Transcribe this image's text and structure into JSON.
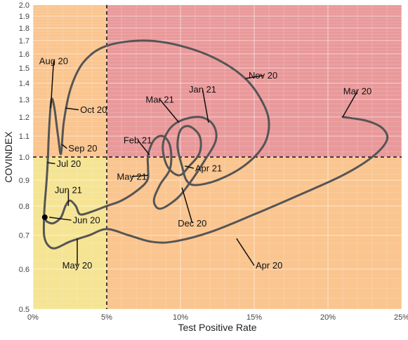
{
  "chart_data": {
    "type": "line",
    "xlabel": "Test Positive Rate",
    "ylabel": "COVINDEX",
    "xlim": [
      0,
      25
    ],
    "ylim": [
      0.5,
      2.0
    ],
    "y_scale": "log",
    "x_ticks": [
      0,
      5,
      10,
      15,
      20,
      25
    ],
    "x_tick_labels": [
      "0%",
      "5%",
      "10%",
      "15%",
      "20%",
      "25%"
    ],
    "y_ticks": [
      0.5,
      0.6,
      0.7,
      0.8,
      0.9,
      1.0,
      1.1,
      1.2,
      1.3,
      1.4,
      1.5,
      1.6,
      1.7,
      1.8,
      1.9,
      2.0
    ],
    "y_tick_labels": [
      "0.5",
      "0.6",
      "0.7",
      "0.8",
      "0.9",
      "1.0",
      "1.1",
      "1.2",
      "1.3",
      "1.4",
      "1.5",
      "1.6",
      "1.7",
      "1.8",
      "1.9",
      "2.0"
    ],
    "thresholds": {
      "x": 5,
      "y": 1.0
    },
    "zones": {
      "low_low": "#f5e493",
      "low_high": "#fac58f",
      "high_low": "#fac58f",
      "high_high": "#e9999a"
    },
    "line_color": "#555555",
    "series": [
      {
        "points": [
          [
            21.0,
            1.2
          ],
          [
            22.6,
            1.18
          ],
          [
            23.7,
            1.14
          ],
          [
            24.0,
            1.08
          ],
          [
            23.0,
            1.0
          ],
          [
            21.0,
            0.92
          ],
          [
            18.0,
            0.84
          ],
          [
            15.0,
            0.77
          ],
          [
            12.0,
            0.71
          ],
          [
            9.5,
            0.68
          ],
          [
            8.0,
            0.68
          ],
          [
            6.5,
            0.7
          ],
          [
            5.0,
            0.72
          ],
          [
            3.8,
            0.7
          ],
          [
            2.5,
            0.68
          ],
          [
            1.5,
            0.66
          ],
          [
            1.0,
            0.67
          ],
          [
            0.75,
            0.7
          ],
          [
            0.75,
            0.76
          ],
          [
            0.8,
            0.81
          ],
          [
            0.9,
            0.88
          ],
          [
            1.0,
            0.98
          ],
          [
            1.1,
            1.15
          ],
          [
            1.25,
            1.3
          ],
          [
            1.45,
            1.25
          ],
          [
            1.7,
            1.1
          ],
          [
            1.9,
            1.015
          ],
          [
            2.1,
            1.18
          ],
          [
            2.6,
            1.38
          ],
          [
            3.5,
            1.55
          ],
          [
            5.0,
            1.66
          ],
          [
            7.5,
            1.7
          ],
          [
            10.0,
            1.66
          ],
          [
            12.5,
            1.56
          ],
          [
            14.5,
            1.42
          ],
          [
            15.7,
            1.26
          ],
          [
            16.0,
            1.15
          ],
          [
            15.6,
            1.05
          ],
          [
            14.3,
            0.96
          ],
          [
            12.5,
            0.9
          ],
          [
            11.0,
            0.88
          ],
          [
            10.4,
            0.9
          ],
          [
            10.1,
            0.96
          ],
          [
            9.8,
            1.05
          ],
          [
            10.0,
            1.13
          ],
          [
            10.6,
            1.15
          ],
          [
            11.3,
            1.1
          ],
          [
            11.3,
            1.02
          ],
          [
            10.6,
            0.96
          ],
          [
            9.9,
            0.92
          ],
          [
            9.1,
            0.96
          ],
          [
            8.8,
            1.05
          ],
          [
            9.2,
            1.13
          ],
          [
            10.0,
            1.18
          ],
          [
            11.3,
            1.2
          ],
          [
            12.2,
            1.16
          ],
          [
            12.4,
            1.08
          ],
          [
            11.6,
            0.98
          ],
          [
            10.4,
            0.87
          ],
          [
            9.6,
            0.82
          ],
          [
            8.6,
            0.79
          ],
          [
            8.2,
            0.82
          ],
          [
            8.6,
            0.88
          ],
          [
            9.3,
            0.95
          ],
          [
            9.3,
            1.05
          ],
          [
            8.8,
            1.1
          ],
          [
            8.2,
            1.08
          ],
          [
            7.8,
            1.01
          ],
          [
            7.8,
            0.95
          ],
          [
            7.75,
            0.9
          ],
          [
            7.1,
            0.86
          ],
          [
            6.0,
            0.82
          ],
          [
            5.0,
            0.8
          ],
          [
            4.0,
            0.78
          ],
          [
            3.2,
            0.77
          ],
          [
            2.9,
            0.8
          ],
          [
            2.5,
            0.82
          ],
          [
            2.2,
            0.8
          ],
          [
            1.9,
            0.76
          ],
          [
            1.4,
            0.74
          ],
          [
            0.95,
            0.745
          ],
          [
            0.8,
            0.76
          ]
        ]
      }
    ],
    "end_point": [
      0.8,
      0.76
    ],
    "annotations": [
      {
        "label": "Mar 20",
        "point": [
          21.0,
          1.2
        ],
        "text": [
          22.0,
          1.35
        ],
        "anchor": "middle"
      },
      {
        "label": "Apr 20",
        "point": [
          13.8,
          0.69
        ],
        "text": [
          15.0,
          0.61
        ],
        "anchor": "start"
      },
      {
        "label": "May 20",
        "point": [
          3.0,
          0.69
        ],
        "text": [
          3.0,
          0.61
        ],
        "anchor": "middle"
      },
      {
        "label": "Jun 20",
        "point": [
          1.1,
          0.76
        ],
        "text": [
          2.6,
          0.75
        ],
        "anchor": "start"
      },
      {
        "label": "Jul 20",
        "point": [
          0.95,
          0.975
        ],
        "text": [
          1.5,
          0.97
        ],
        "anchor": "start"
      },
      {
        "label": "Aug 20",
        "point": [
          1.2,
          1.25
        ],
        "text": [
          1.4,
          1.55
        ],
        "anchor": "middle"
      },
      {
        "label": "Sep 20",
        "point": [
          1.95,
          1.06
        ],
        "text": [
          2.3,
          1.04
        ],
        "anchor": "start"
      },
      {
        "label": "Oct 20",
        "point": [
          2.2,
          1.25
        ],
        "text": [
          3.1,
          1.24
        ],
        "anchor": "start"
      },
      {
        "label": "Nov 20",
        "point": [
          14.4,
          1.43
        ],
        "text": [
          15.6,
          1.45
        ],
        "anchor": "middle"
      },
      {
        "label": "Dec 20",
        "point": [
          10.1,
          0.87
        ],
        "text": [
          10.8,
          0.74
        ],
        "anchor": "middle"
      },
      {
        "label": "Jan 21",
        "point": [
          11.9,
          1.17
        ],
        "text": [
          11.5,
          1.36
        ],
        "anchor": "middle"
      },
      {
        "label": "Feb 21",
        "point": [
          7.9,
          1.01
        ],
        "text": [
          7.1,
          1.08
        ],
        "anchor": "middle"
      },
      {
        "label": "Mar 21",
        "point": [
          9.9,
          1.17
        ],
        "text": [
          8.6,
          1.3
        ],
        "anchor": "middle"
      },
      {
        "label": "Apr 21",
        "point": [
          10.3,
          0.96
        ],
        "text": [
          10.9,
          0.95
        ],
        "anchor": "start"
      },
      {
        "label": "May 21",
        "point": [
          7.8,
          0.92
        ],
        "text": [
          6.7,
          0.915
        ],
        "anchor": "middle"
      },
      {
        "label": "Jun 21",
        "point": [
          2.4,
          0.8
        ],
        "text": [
          2.4,
          0.86
        ],
        "anchor": "middle"
      }
    ]
  }
}
